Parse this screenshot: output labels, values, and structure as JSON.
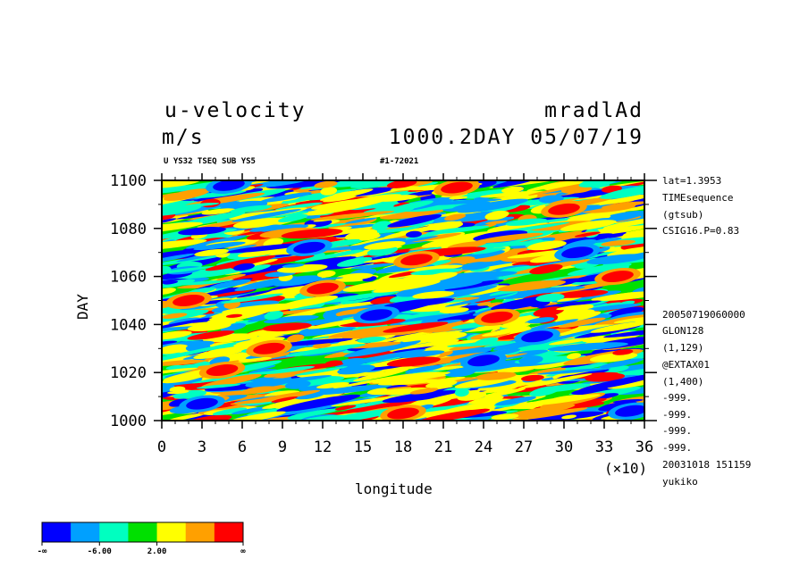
{
  "header": {
    "title": "u-velocity",
    "units": "m/s",
    "experiment": "mradlAd",
    "day_date": "1000.2DAY 05/07/19",
    "subtitle_left": "U YS32 TSEQ SUB YS5",
    "subtitle_right": "#1-72021"
  },
  "chart_data": {
    "type": "heatmap",
    "xlabel": "longitude",
    "ylabel": "DAY",
    "x_multiplier": "(×10)",
    "xlim": [
      0,
      36
    ],
    "ylim": [
      1000,
      1100
    ],
    "x_ticks": [
      "0",
      "3",
      "6",
      "9",
      "12",
      "15",
      "18",
      "21",
      "24",
      "27",
      "30",
      "33",
      "36"
    ],
    "y_ticks": [
      "1000",
      "1020",
      "1040",
      "1060",
      "1080",
      "1100"
    ],
    "colorbar": {
      "colors": [
        "#0000ff",
        "#00a0ff",
        "#00ffc0",
        "#00e000",
        "#ffff00",
        "#ffa000",
        "#ff0000"
      ],
      "labels": [
        "-∞",
        "-6.00",
        "2.00",
        "∞"
      ]
    },
    "strong_regions": [
      {
        "lon": 4.5,
        "day": 1021,
        "color": "#ff0000"
      },
      {
        "lon": 19,
        "day": 1067,
        "color": "#ff0000"
      },
      {
        "lon": 22,
        "day": 1097,
        "color": "#ff0000"
      },
      {
        "lon": 25,
        "day": 1043,
        "color": "#ff0000"
      },
      {
        "lon": 18,
        "day": 1003,
        "color": "#ff0000"
      },
      {
        "lon": 12,
        "day": 1055,
        "color": "#ff0000"
      },
      {
        "lon": 30,
        "day": 1088,
        "color": "#ff0000"
      },
      {
        "lon": 34,
        "day": 1060,
        "color": "#ff0000"
      },
      {
        "lon": 8,
        "day": 1030,
        "color": "#ff0000"
      },
      {
        "lon": 2,
        "day": 1050,
        "color": "#ff0000"
      },
      {
        "lon": 24,
        "day": 1025,
        "color": "#0000ff"
      },
      {
        "lon": 11,
        "day": 1072,
        "color": "#0000ff"
      },
      {
        "lon": 5,
        "day": 1098,
        "color": "#0000ff"
      },
      {
        "lon": 35,
        "day": 1004,
        "color": "#0000ff"
      },
      {
        "lon": 16,
        "day": 1044,
        "color": "#0000ff"
      },
      {
        "lon": 28,
        "day": 1035,
        "color": "#0000ff"
      },
      {
        "lon": 31,
        "day": 1070,
        "color": "#0000ff"
      },
      {
        "lon": 3,
        "day": 1007,
        "color": "#0000ff"
      }
    ]
  },
  "info": {
    "lat": "lat=1.3953",
    "mode": "TIMEsequence",
    "gtsub": "(gtsub)",
    "csig": "CSIG16.P=0.83",
    "timestamp": "20050719060000",
    "glon": "GLON128",
    "range1": "(1,129)",
    "extax": "@EXTAX01",
    "range2": "(1,400)",
    "miss1": "-999.",
    "miss2": "-999.",
    "miss3": "-999.",
    "miss4": "-999.",
    "created": "20031018 151159",
    "user": "yukiko"
  }
}
